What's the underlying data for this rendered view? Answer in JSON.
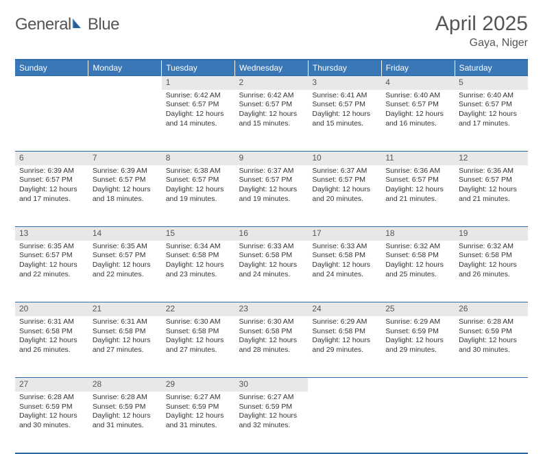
{
  "logo": {
    "part1": "General",
    "part2": "Blue"
  },
  "title": "April 2025",
  "location": "Gaya, Niger",
  "colors": {
    "header_bg": "#3a77b7",
    "header_text": "#ffffff",
    "daynum_bg": "#e8e8e8",
    "border": "#2b6aa8",
    "text": "#333333",
    "title_text": "#555555"
  },
  "weekdays": [
    "Sunday",
    "Monday",
    "Tuesday",
    "Wednesday",
    "Thursday",
    "Friday",
    "Saturday"
  ],
  "weeks": [
    [
      null,
      null,
      {
        "d": "1",
        "sr": "Sunrise: 6:42 AM",
        "ss": "Sunset: 6:57 PM",
        "dl": "Daylight: 12 hours and 14 minutes."
      },
      {
        "d": "2",
        "sr": "Sunrise: 6:42 AM",
        "ss": "Sunset: 6:57 PM",
        "dl": "Daylight: 12 hours and 15 minutes."
      },
      {
        "d": "3",
        "sr": "Sunrise: 6:41 AM",
        "ss": "Sunset: 6:57 PM",
        "dl": "Daylight: 12 hours and 15 minutes."
      },
      {
        "d": "4",
        "sr": "Sunrise: 6:40 AM",
        "ss": "Sunset: 6:57 PM",
        "dl": "Daylight: 12 hours and 16 minutes."
      },
      {
        "d": "5",
        "sr": "Sunrise: 6:40 AM",
        "ss": "Sunset: 6:57 PM",
        "dl": "Daylight: 12 hours and 17 minutes."
      }
    ],
    [
      {
        "d": "6",
        "sr": "Sunrise: 6:39 AM",
        "ss": "Sunset: 6:57 PM",
        "dl": "Daylight: 12 hours and 17 minutes."
      },
      {
        "d": "7",
        "sr": "Sunrise: 6:39 AM",
        "ss": "Sunset: 6:57 PM",
        "dl": "Daylight: 12 hours and 18 minutes."
      },
      {
        "d": "8",
        "sr": "Sunrise: 6:38 AM",
        "ss": "Sunset: 6:57 PM",
        "dl": "Daylight: 12 hours and 19 minutes."
      },
      {
        "d": "9",
        "sr": "Sunrise: 6:37 AM",
        "ss": "Sunset: 6:57 PM",
        "dl": "Daylight: 12 hours and 19 minutes."
      },
      {
        "d": "10",
        "sr": "Sunrise: 6:37 AM",
        "ss": "Sunset: 6:57 PM",
        "dl": "Daylight: 12 hours and 20 minutes."
      },
      {
        "d": "11",
        "sr": "Sunrise: 6:36 AM",
        "ss": "Sunset: 6:57 PM",
        "dl": "Daylight: 12 hours and 21 minutes."
      },
      {
        "d": "12",
        "sr": "Sunrise: 6:36 AM",
        "ss": "Sunset: 6:57 PM",
        "dl": "Daylight: 12 hours and 21 minutes."
      }
    ],
    [
      {
        "d": "13",
        "sr": "Sunrise: 6:35 AM",
        "ss": "Sunset: 6:57 PM",
        "dl": "Daylight: 12 hours and 22 minutes."
      },
      {
        "d": "14",
        "sr": "Sunrise: 6:35 AM",
        "ss": "Sunset: 6:57 PM",
        "dl": "Daylight: 12 hours and 22 minutes."
      },
      {
        "d": "15",
        "sr": "Sunrise: 6:34 AM",
        "ss": "Sunset: 6:58 PM",
        "dl": "Daylight: 12 hours and 23 minutes."
      },
      {
        "d": "16",
        "sr": "Sunrise: 6:33 AM",
        "ss": "Sunset: 6:58 PM",
        "dl": "Daylight: 12 hours and 24 minutes."
      },
      {
        "d": "17",
        "sr": "Sunrise: 6:33 AM",
        "ss": "Sunset: 6:58 PM",
        "dl": "Daylight: 12 hours and 24 minutes."
      },
      {
        "d": "18",
        "sr": "Sunrise: 6:32 AM",
        "ss": "Sunset: 6:58 PM",
        "dl": "Daylight: 12 hours and 25 minutes."
      },
      {
        "d": "19",
        "sr": "Sunrise: 6:32 AM",
        "ss": "Sunset: 6:58 PM",
        "dl": "Daylight: 12 hours and 26 minutes."
      }
    ],
    [
      {
        "d": "20",
        "sr": "Sunrise: 6:31 AM",
        "ss": "Sunset: 6:58 PM",
        "dl": "Daylight: 12 hours and 26 minutes."
      },
      {
        "d": "21",
        "sr": "Sunrise: 6:31 AM",
        "ss": "Sunset: 6:58 PM",
        "dl": "Daylight: 12 hours and 27 minutes."
      },
      {
        "d": "22",
        "sr": "Sunrise: 6:30 AM",
        "ss": "Sunset: 6:58 PM",
        "dl": "Daylight: 12 hours and 27 minutes."
      },
      {
        "d": "23",
        "sr": "Sunrise: 6:30 AM",
        "ss": "Sunset: 6:58 PM",
        "dl": "Daylight: 12 hours and 28 minutes."
      },
      {
        "d": "24",
        "sr": "Sunrise: 6:29 AM",
        "ss": "Sunset: 6:58 PM",
        "dl": "Daylight: 12 hours and 29 minutes."
      },
      {
        "d": "25",
        "sr": "Sunrise: 6:29 AM",
        "ss": "Sunset: 6:59 PM",
        "dl": "Daylight: 12 hours and 29 minutes."
      },
      {
        "d": "26",
        "sr": "Sunrise: 6:28 AM",
        "ss": "Sunset: 6:59 PM",
        "dl": "Daylight: 12 hours and 30 minutes."
      }
    ],
    [
      {
        "d": "27",
        "sr": "Sunrise: 6:28 AM",
        "ss": "Sunset: 6:59 PM",
        "dl": "Daylight: 12 hours and 30 minutes."
      },
      {
        "d": "28",
        "sr": "Sunrise: 6:28 AM",
        "ss": "Sunset: 6:59 PM",
        "dl": "Daylight: 12 hours and 31 minutes."
      },
      {
        "d": "29",
        "sr": "Sunrise: 6:27 AM",
        "ss": "Sunset: 6:59 PM",
        "dl": "Daylight: 12 hours and 31 minutes."
      },
      {
        "d": "30",
        "sr": "Sunrise: 6:27 AM",
        "ss": "Sunset: 6:59 PM",
        "dl": "Daylight: 12 hours and 32 minutes."
      },
      null,
      null,
      null
    ]
  ]
}
